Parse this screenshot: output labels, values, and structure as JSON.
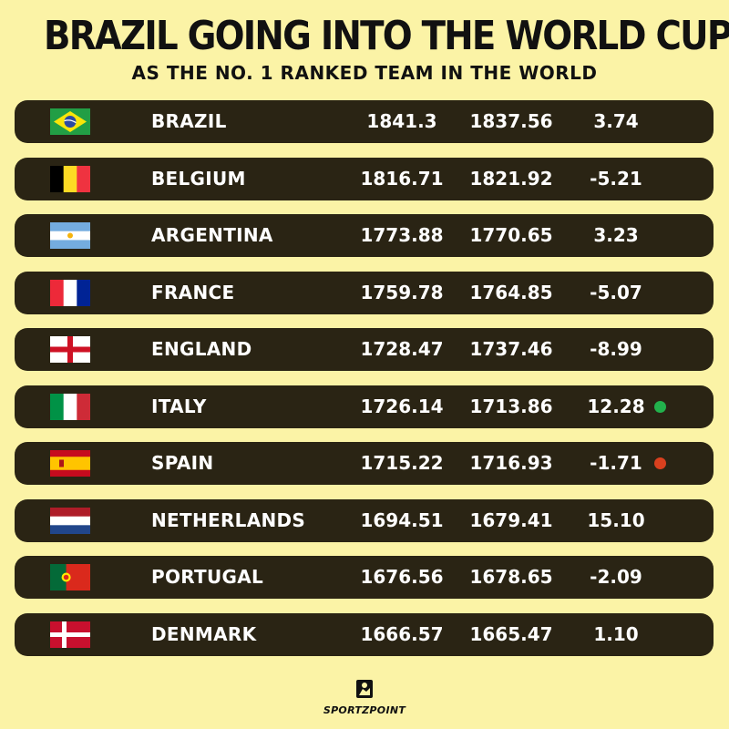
{
  "title": "BRAZIL GOING INTO THE WORLD CUP",
  "subtitle": "AS THE NO. 1 RANKED TEAM IN THE WORLD",
  "rows": [
    {
      "team": "BRAZIL",
      "flag": "brazil-flag-icon",
      "v1": "1841.3",
      "v2": "1837.56",
      "change": "3.74",
      "dot": null
    },
    {
      "team": "BELGIUM",
      "flag": "belgium-flag-icon",
      "v1": "1816.71",
      "v2": "1821.92",
      "change": "-5.21",
      "dot": null
    },
    {
      "team": "ARGENTINA",
      "flag": "argentina-flag-icon",
      "v1": "1773.88",
      "v2": "1770.65",
      "change": "3.23",
      "dot": null
    },
    {
      "team": "FRANCE",
      "flag": "france-flag-icon",
      "v1": "1759.78",
      "v2": "1764.85",
      "change": "-5.07",
      "dot": null
    },
    {
      "team": "ENGLAND",
      "flag": "england-flag-icon",
      "v1": "1728.47",
      "v2": "1737.46",
      "change": "-8.99",
      "dot": null
    },
    {
      "team": "ITALY",
      "flag": "italy-flag-icon",
      "v1": "1726.14",
      "v2": "1713.86",
      "change": "12.28",
      "dot": "#22b14c"
    },
    {
      "team": "SPAIN",
      "flag": "spain-flag-icon",
      "v1": "1715.22",
      "v2": "1716.93",
      "change": "-1.71",
      "dot": "#d9401e"
    },
    {
      "team": "NETHERLANDS",
      "flag": "netherlands-flag-icon",
      "v1": "1694.51",
      "v2": "1679.41",
      "change": "15.10",
      "dot": null
    },
    {
      "team": "PORTUGAL",
      "flag": "portugal-flag-icon",
      "v1": "1676.56",
      "v2": "1678.65",
      "change": "-2.09",
      "dot": null
    },
    {
      "team": "DENMARK",
      "flag": "denmark-flag-icon",
      "v1": "1666.57",
      "v2": "1665.47",
      "change": "1.10",
      "dot": null
    }
  ],
  "logo": {
    "text": "SPORTZPOINT",
    "icon": "sportzpoint-logo-icon"
  },
  "colors": {
    "background": "#fbf3a6",
    "row": "#2a2414",
    "text": "#ffffff",
    "up": "#22b14c",
    "down": "#d9401e"
  }
}
